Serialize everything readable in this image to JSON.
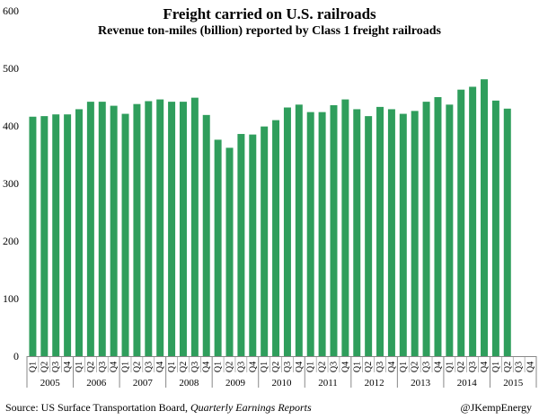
{
  "chart_data": {
    "type": "bar",
    "title": "Freight carried on U.S. railroads",
    "subtitle": "Revenue ton-miles (billion) reported by Class 1 freight railroads",
    "xlabel": "",
    "ylabel": "",
    "ylim": [
      0,
      600
    ],
    "yticks": [
      0,
      100,
      200,
      300,
      400,
      500,
      600
    ],
    "color": "#2f9e5c",
    "quarter_labels": [
      "Q1",
      "Q2",
      "Q3",
      "Q4"
    ],
    "years": [
      "2005",
      "2006",
      "2007",
      "2008",
      "2009",
      "2010",
      "2011",
      "2012",
      "2013",
      "2014",
      "2015"
    ],
    "values": [
      416,
      417,
      420,
      420,
      429,
      442,
      442,
      435,
      421,
      438,
      443,
      446,
      442,
      442,
      449,
      419,
      376,
      362,
      386,
      385,
      399,
      410,
      432,
      437,
      424,
      424,
      436,
      446,
      429,
      417,
      433,
      429,
      421,
      426,
      442,
      450,
      437,
      463,
      468,
      481,
      444,
      430,
      null,
      null
    ]
  },
  "footer": {
    "source_prefix": "Source: US Surface Transportation Board, ",
    "source_italic": "Quarterly Earnings Reports",
    "credit": "@JKempEnergy"
  }
}
